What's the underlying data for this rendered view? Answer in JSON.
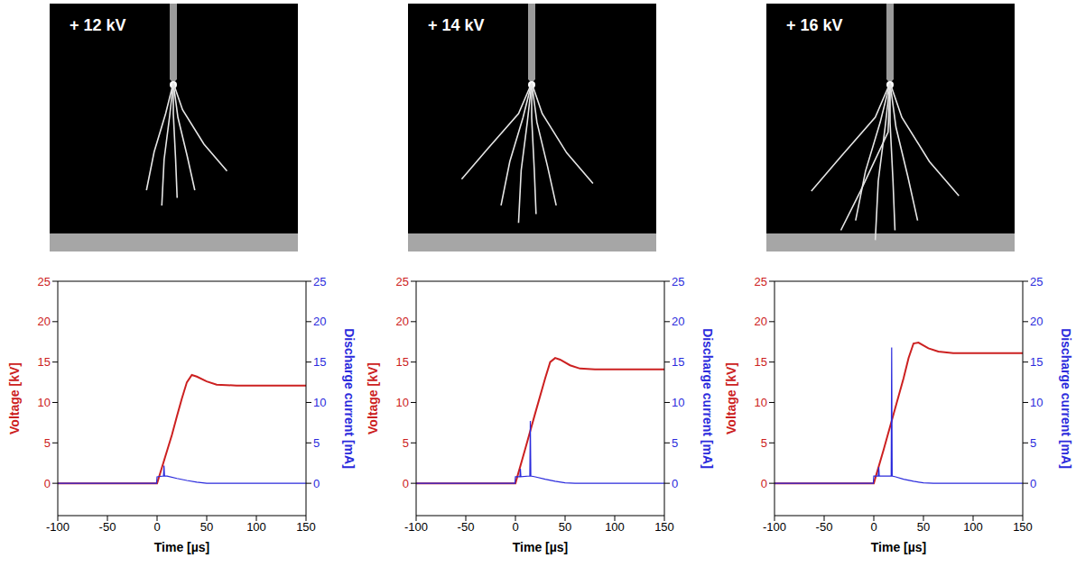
{
  "chart_data": [
    {
      "type": "line",
      "title": "+ 12 kV",
      "xlabel": "Time [µs]",
      "ylabel": "Voltage [kV]",
      "y2label": "Discharge current [mA]",
      "xlim": [
        -100,
        150
      ],
      "xticks": [
        -100,
        -50,
        0,
        50,
        100,
        150
      ],
      "ylim": [
        -4,
        25
      ],
      "yticks": [
        0,
        5,
        10,
        15,
        20,
        25
      ],
      "y2lim": [
        -4,
        25
      ],
      "y2ticks": [
        0,
        5,
        10,
        15,
        20,
        25
      ],
      "series": [
        {
          "name": "Voltage [kV]",
          "color": "#cc2020",
          "x": [
            -100,
            0,
            5,
            10,
            15,
            20,
            25,
            30,
            35,
            40,
            50,
            60,
            80,
            150
          ],
          "values": [
            0,
            0,
            2,
            4,
            6,
            8.3,
            10.5,
            12.5,
            13.4,
            13.2,
            12.6,
            12.2,
            12.1,
            12.1
          ]
        },
        {
          "name": "Discharge current [mA]",
          "color": "#2a2adc",
          "axis": "y2",
          "x": [
            -100,
            -0.5,
            0,
            6.5,
            7,
            7.5,
            10,
            20,
            30,
            40,
            50,
            150
          ],
          "values": [
            0,
            0,
            0.8,
            0.9,
            2.2,
            0.9,
            0.9,
            0.6,
            0.35,
            0.15,
            0,
            0
          ]
        }
      ]
    },
    {
      "type": "line",
      "title": "+ 14 kV",
      "xlabel": "Time [µs]",
      "ylabel": "Voltage [kV]",
      "y2label": "Discharge current [mA]",
      "xlim": [
        -100,
        150
      ],
      "xticks": [
        -100,
        -50,
        0,
        50,
        100,
        150
      ],
      "ylim": [
        -4,
        25
      ],
      "yticks": [
        0,
        5,
        10,
        15,
        20,
        25
      ],
      "y2lim": [
        -4,
        25
      ],
      "y2ticks": [
        0,
        5,
        10,
        15,
        20,
        25
      ],
      "series": [
        {
          "name": "Voltage [kV]",
          "color": "#cc2020",
          "x": [
            -100,
            0,
            10,
            20,
            30,
            35,
            40,
            45,
            55,
            65,
            80,
            150
          ],
          "values": [
            0,
            0,
            4.3,
            8.7,
            13,
            15,
            15.5,
            15.3,
            14.6,
            14.2,
            14.1,
            14.1
          ]
        },
        {
          "name": "Discharge current [mA]",
          "color": "#2a2adc",
          "axis": "y2",
          "x": [
            -100,
            -0.5,
            0,
            4.5,
            5,
            5.5,
            14.5,
            15,
            15.5,
            20,
            30,
            40,
            50,
            60,
            150
          ],
          "values": [
            0,
            0,
            0.8,
            0.8,
            1.8,
            0.8,
            0.9,
            7.7,
            0.9,
            0.8,
            0.5,
            0.25,
            0.05,
            0,
            0
          ]
        }
      ]
    },
    {
      "type": "line",
      "title": "+ 16 kV",
      "xlabel": "Time [µs]",
      "ylabel": "Voltage [kV]",
      "y2label": "Discharge current [mA]",
      "xlim": [
        -100,
        150
      ],
      "xticks": [
        -100,
        -50,
        0,
        50,
        100,
        150
      ],
      "ylim": [
        -4,
        25
      ],
      "yticks": [
        0,
        5,
        10,
        15,
        20,
        25
      ],
      "y2lim": [
        -4,
        25
      ],
      "y2ticks": [
        0,
        5,
        10,
        15,
        20,
        25
      ],
      "series": [
        {
          "name": "Voltage [kV]",
          "color": "#cc2020",
          "x": [
            -100,
            0,
            10,
            20,
            30,
            35,
            40,
            45,
            55,
            65,
            80,
            150
          ],
          "values": [
            0,
            0,
            4.2,
            8.6,
            13,
            15.5,
            17.3,
            17.4,
            16.7,
            16.3,
            16.1,
            16.1
          ]
        },
        {
          "name": "Discharge current [mA]",
          "color": "#2a2adc",
          "axis": "y2",
          "x": [
            -100,
            -0.5,
            0,
            4.5,
            5,
            5.5,
            17.5,
            18,
            18.5,
            22,
            30,
            40,
            50,
            60,
            150
          ],
          "values": [
            0,
            0,
            0.9,
            0.9,
            2,
            0.9,
            0.9,
            16.8,
            0.9,
            0.8,
            0.5,
            0.25,
            0.05,
            0,
            0
          ]
        }
      ]
    }
  ]
}
